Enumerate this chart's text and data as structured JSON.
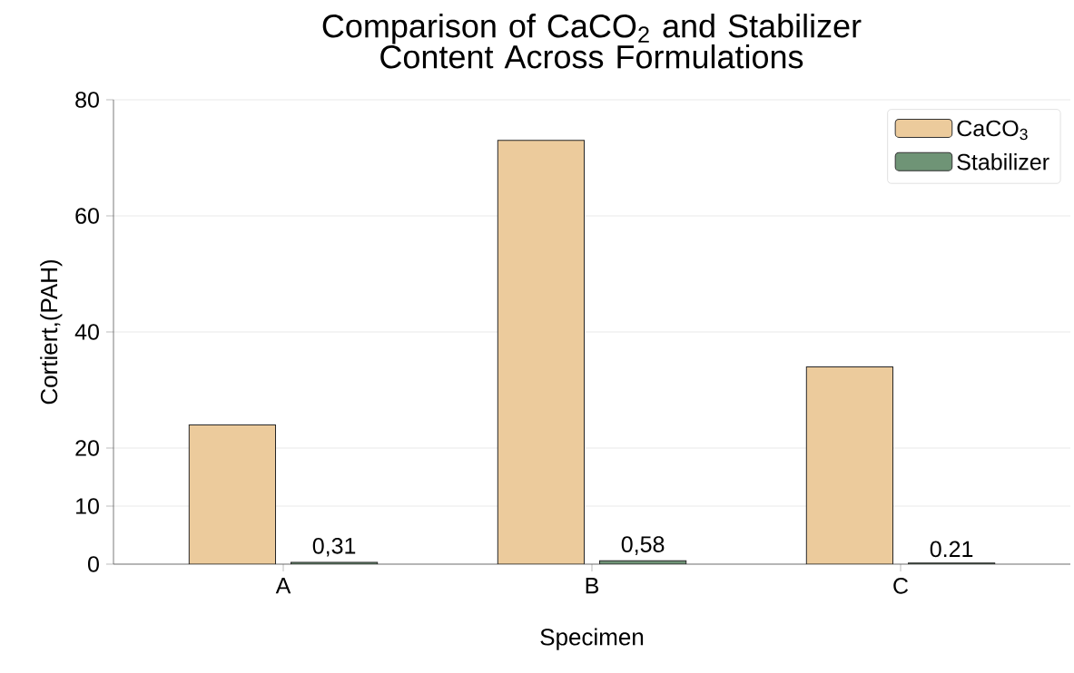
{
  "chart_data": {
    "type": "bar",
    "title": "Comparison of CaCO$_{2}$ and Stabilizer Content Across Formulations",
    "xlabel": "Specimen",
    "ylabel": "Cortiert,(PAH)",
    "categories": [
      "A",
      "B",
      "C"
    ],
    "series": [
      {
        "name": "CaCO$_{3}$",
        "color": "#eccb9c",
        "values": [
          24,
          73,
          34
        ]
      },
      {
        "name": "Stabilizer",
        "color": "#6f9476",
        "values": [
          0.31,
          0.58,
          0.21
        ],
        "value_labels": [
          "0,31",
          "0,58",
          "0.21"
        ]
      }
    ],
    "ylim": [
      0,
      80
    ],
    "yticks": [
      0,
      10,
      20,
      40,
      60,
      80
    ],
    "grid": "y",
    "legend": "top right"
  }
}
